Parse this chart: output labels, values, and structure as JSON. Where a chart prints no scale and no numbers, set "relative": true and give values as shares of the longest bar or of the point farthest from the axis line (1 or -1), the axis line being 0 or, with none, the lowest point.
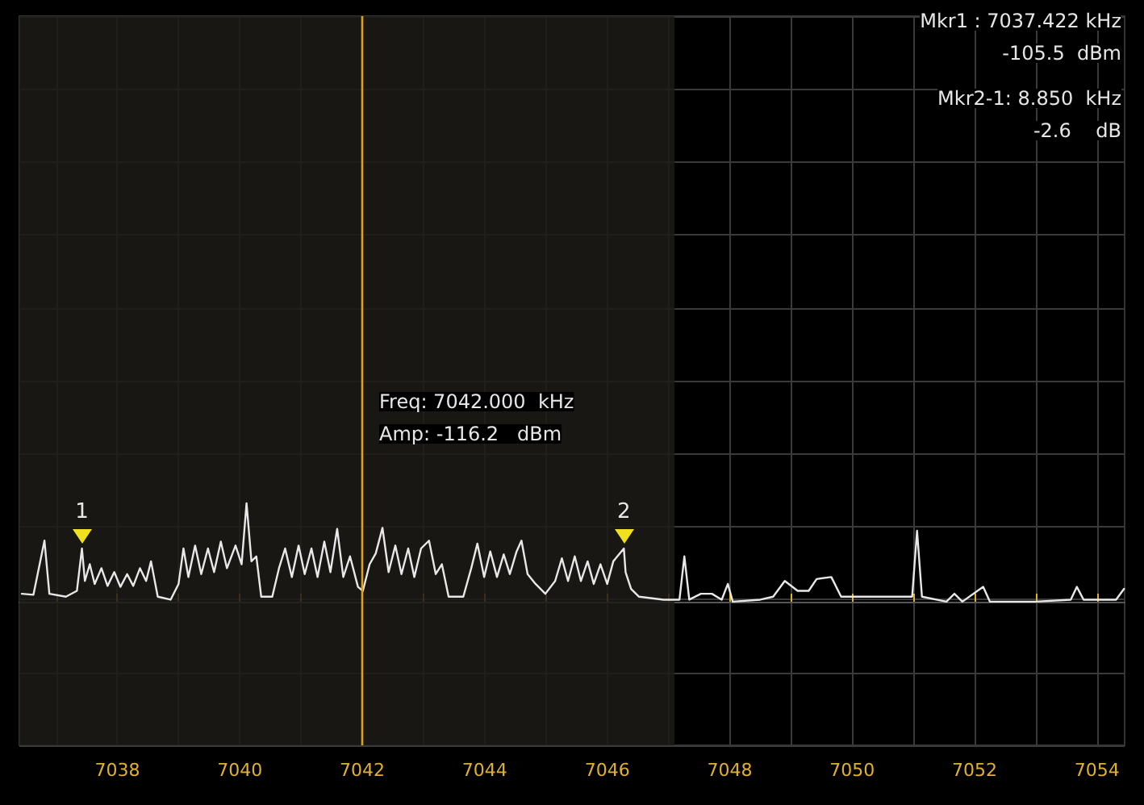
{
  "chart_data": {
    "type": "line",
    "relative": true,
    "grid": true,
    "marker": "none",
    "xlim": [
      7036.4,
      7054.45
    ],
    "xticks": [
      {
        "value": 7037,
        "label": null
      },
      7038,
      {
        "value": 7039,
        "label": null
      },
      7040,
      {
        "value": 7041,
        "label": null
      },
      7042,
      {
        "value": 7043,
        "label": null
      },
      7044,
      {
        "value": 7045,
        "label": null
      },
      7046,
      {
        "value": 7047,
        "label": null
      },
      7048,
      {
        "value": 7049,
        "label": null
      },
      7050,
      {
        "value": 7051,
        "label": null
      },
      7052,
      {
        "value": 7053,
        "label": null
      },
      7054
    ],
    "series": [
      {
        "color": "#e8e8e8",
        "x": [
          7036.44,
          7036.63,
          7036.81,
          7036.89,
          7037.16,
          7037.34,
          7037.422,
          7037.47,
          7037.55,
          7037.63,
          7037.74,
          7037.84,
          7037.95,
          7038.05,
          7038.16,
          7038.26,
          7038.37,
          7038.47,
          7038.55,
          7038.66,
          7038.87,
          7039.0,
          7039.08,
          7039.16,
          7039.27,
          7039.37,
          7039.48,
          7039.58,
          7039.69,
          7039.79,
          7039.93,
          7040.03,
          7040.11,
          7040.19,
          7040.27,
          7040.35,
          7040.53,
          7040.64,
          7040.74,
          7040.85,
          7040.96,
          7041.06,
          7041.17,
          7041.27,
          7041.38,
          7041.48,
          7041.59,
          7041.69,
          7041.8,
          7041.93,
          7042.01,
          7042.12,
          7042.22,
          7042.33,
          7042.43,
          7042.54,
          7042.64,
          7042.75,
          7042.85,
          7042.96,
          7043.09,
          7043.2,
          7043.3,
          7043.41,
          7043.65,
          7043.78,
          7043.88,
          7043.99,
          7044.09,
          7044.2,
          7044.31,
          7044.41,
          7044.52,
          7044.6,
          7044.7,
          7044.83,
          7044.99,
          7045.15,
          7045.26,
          7045.36,
          7045.47,
          7045.57,
          7045.68,
          7045.78,
          7045.89,
          7046.0,
          7046.1,
          7046.272,
          7046.3,
          7046.39,
          7046.52,
          7046.92,
          7047.18,
          7047.26,
          7047.34,
          7047.53,
          7047.71,
          7047.87,
          7047.97,
          7048.05,
          7048.5,
          7048.71,
          7048.9,
          7049.11,
          7049.29,
          7049.42,
          7049.66,
          7049.82,
          7050.08,
          7050.48,
          7050.98,
          7051.06,
          7051.14,
          7051.54,
          7051.67,
          7051.8,
          7052.14,
          7052.25,
          7052.99,
          7053.57,
          7053.67,
          7053.78,
          7054.31,
          7054.44
        ],
        "values": [
          0.08,
          0.07,
          0.62,
          0.08,
          0.05,
          0.11,
          0.54,
          0.21,
          0.38,
          0.18,
          0.34,
          0.16,
          0.3,
          0.15,
          0.28,
          0.16,
          0.34,
          0.21,
          0.41,
          0.05,
          0.02,
          0.18,
          0.54,
          0.25,
          0.57,
          0.28,
          0.54,
          0.3,
          0.61,
          0.34,
          0.57,
          0.38,
          1,
          0.41,
          0.46,
          0.05,
          0.05,
          0.34,
          0.54,
          0.25,
          0.57,
          0.28,
          0.54,
          0.25,
          0.61,
          0.3,
          0.74,
          0.25,
          0.46,
          0.15,
          0.11,
          0.38,
          0.49,
          0.75,
          0.3,
          0.57,
          0.28,
          0.54,
          0.25,
          0.54,
          0.62,
          0.28,
          0.38,
          0.05,
          0.05,
          0.34,
          0.59,
          0.25,
          0.51,
          0.25,
          0.48,
          0.28,
          0.51,
          0.62,
          0.28,
          0.18,
          0.08,
          0.21,
          0.44,
          0.21,
          0.46,
          0.21,
          0.41,
          0.18,
          0.38,
          0.18,
          0.41,
          0.54,
          0.3,
          0.13,
          0.05,
          0.02,
          0.02,
          0.46,
          0.02,
          0.08,
          0.08,
          0.02,
          0.18,
          0,
          0.02,
          0.05,
          0.21,
          0.11,
          0.11,
          0.23,
          0.25,
          0.05,
          0.05,
          0.05,
          0.05,
          0.72,
          0.05,
          0,
          0.08,
          0,
          0.15,
          0,
          0,
          0.02,
          0.15,
          0.02,
          0.02,
          0.13
        ]
      }
    ],
    "bands": [
      {
        "axis": "x",
        "from": 7036.4,
        "to": 7047.1,
        "color": "#1c1b17"
      }
    ],
    "ref_lines": [
      {
        "axis": "x",
        "value": 7042,
        "color": "#e0a020"
      }
    ],
    "annotations": [
      {
        "text": "1",
        "x": 7037.422,
        "y": 0.54
      },
      {
        "text": "2",
        "x": 7046.272,
        "y": 0.54
      },
      "Mkr1 : 7037.422 kHz",
      "-105.5  dBm",
      "Mkr2-1: 8.850  kHz",
      "-2.6    dB",
      "Freq: 7042.000  kHz",
      "Amp: -116.2   dBm"
    ]
  }
}
